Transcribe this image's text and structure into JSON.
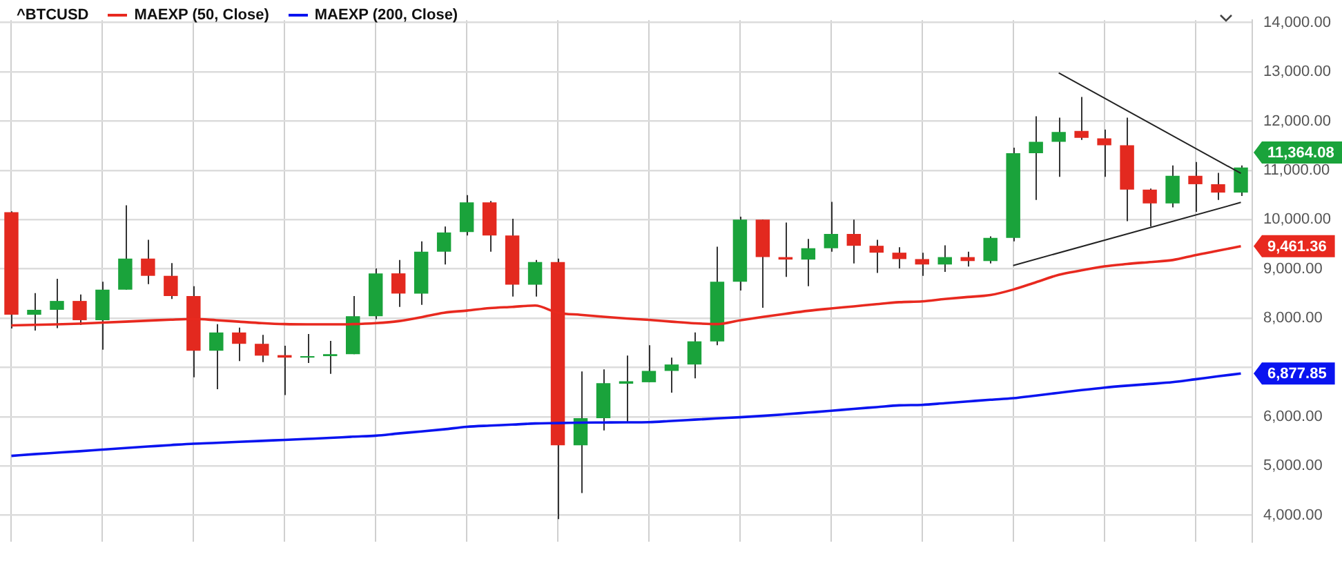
{
  "chart_data": {
    "type": "candlestick",
    "title": "^BTCUSD",
    "legend": "top left",
    "grid": true,
    "categories": [
      null,
      null,
      null,
      null,
      null,
      null,
      null,
      null,
      null,
      null,
      null,
      null,
      null,
      null,
      null,
      null,
      null,
      null,
      null,
      null,
      null,
      null,
      null,
      null,
      null,
      null,
      null,
      null,
      null,
      null,
      null,
      null,
      null,
      null,
      null,
      null,
      null,
      null,
      null,
      null,
      null,
      null,
      null,
      null,
      null,
      null,
      null,
      null,
      null,
      null,
      null,
      null,
      null,
      null,
      null
    ],
    "ylim": [
      3460,
      14050
    ],
    "yticks": [
      {
        "value": 4000,
        "label": "4,000.00"
      },
      {
        "value": 5000,
        "label": "5,000.00"
      },
      {
        "value": 6000,
        "label": "6,000.00"
      },
      {
        "value": 7000,
        "label": null
      },
      {
        "value": 8000,
        "label": "8,000.00"
      },
      {
        "value": 9000,
        "label": "9,000.00"
      },
      {
        "value": 10000,
        "label": "10,000.00"
      },
      {
        "value": 11000,
        "label": "11,000.00"
      },
      {
        "value": 12000,
        "label": "12,000.00"
      },
      {
        "value": 13000,
        "label": "13,000.00"
      },
      {
        "value": 14000,
        "label": "14,000.00"
      }
    ],
    "annotations": [
      "11,364.08"
    ],
    "series": [
      {
        "ohlc": [
          [
            10150,
            10170,
            7790,
            8070
          ],
          [
            8070,
            8510,
            7750,
            8170
          ],
          [
            8170,
            8800,
            7800,
            8350
          ],
          [
            8350,
            8480,
            7860,
            7960
          ],
          [
            7960,
            8740,
            7360,
            8580
          ],
          [
            8580,
            10290,
            8580,
            9210
          ],
          [
            9210,
            9590,
            8690,
            8860
          ],
          [
            8860,
            9120,
            8390,
            8450
          ],
          [
            8450,
            8650,
            6800,
            7340
          ],
          [
            7340,
            7880,
            6560,
            7710
          ],
          [
            7710,
            7810,
            7130,
            7480
          ],
          [
            7480,
            7660,
            7110,
            7240
          ],
          [
            7250,
            7440,
            6440,
            7200
          ],
          [
            7200,
            7680,
            7090,
            7230
          ],
          [
            7230,
            7540,
            6870,
            7270
          ],
          [
            7270,
            8450,
            7270,
            8040
          ],
          [
            8040,
            9010,
            7980,
            8910
          ],
          [
            8910,
            9180,
            8230,
            8500
          ],
          [
            8500,
            9560,
            8270,
            9350
          ],
          [
            9350,
            9860,
            9090,
            9740
          ],
          [
            9750,
            10500,
            9680,
            10350
          ],
          [
            10350,
            10380,
            9350,
            9680
          ],
          [
            9680,
            10020,
            8440,
            8680
          ],
          [
            8680,
            9180,
            8440,
            9140
          ],
          [
            9140,
            9210,
            3920,
            5420
          ],
          [
            5420,
            6920,
            4450,
            5970
          ],
          [
            5970,
            6960,
            5720,
            6680
          ],
          [
            6670,
            7240,
            5890,
            6720
          ],
          [
            6700,
            7450,
            6700,
            6930
          ],
          [
            6930,
            7200,
            6490,
            7060
          ],
          [
            7060,
            7710,
            6780,
            7530
          ],
          [
            7530,
            9450,
            7450,
            8740
          ],
          [
            8740,
            10060,
            8560,
            10000
          ],
          [
            10000,
            10000,
            8210,
            9240
          ],
          [
            9240,
            9940,
            8840,
            9190
          ],
          [
            9190,
            9610,
            8650,
            9420
          ],
          [
            9420,
            10360,
            9350,
            9710
          ],
          [
            9710,
            10000,
            9110,
            9470
          ],
          [
            9470,
            9590,
            8920,
            9330
          ],
          [
            9330,
            9440,
            9010,
            9200
          ],
          [
            9200,
            9330,
            8860,
            9090
          ],
          [
            9090,
            9480,
            8940,
            9240
          ],
          [
            9240,
            9350,
            9050,
            9160
          ],
          [
            9160,
            9660,
            9110,
            9630
          ],
          [
            9630,
            11460,
            9560,
            11350
          ],
          [
            11350,
            12100,
            10400,
            11580
          ],
          [
            11580,
            12070,
            10870,
            11780
          ],
          [
            11800,
            12490,
            11620,
            11660
          ],
          [
            11650,
            11830,
            10870,
            11510
          ],
          [
            11510,
            12070,
            9970,
            10610
          ],
          [
            10610,
            10630,
            9860,
            10330
          ],
          [
            10330,
            11100,
            10250,
            10890
          ],
          [
            10890,
            11170,
            10160,
            10720
          ],
          [
            10720,
            10950,
            10400,
            10550
          ],
          [
            10550,
            11100,
            10480,
            11060
          ]
        ],
        "colors": [
          "#e3291f",
          "#1aa33b",
          "#1aa33b",
          "#e3291f",
          "#1aa33b",
          "#1aa33b",
          "#e3291f",
          "#e3291f",
          "#e3291f",
          "#1aa33b",
          "#e3291f",
          "#e3291f",
          "#e3291f",
          "#1aa33b",
          "#1aa33b",
          "#1aa33b",
          "#1aa33b",
          "#e3291f",
          "#1aa33b",
          "#1aa33b",
          "#1aa33b",
          "#e3291f",
          "#e3291f",
          "#1aa33b",
          "#e3291f",
          "#1aa33b",
          "#1aa33b",
          "#1aa33b",
          "#1aa33b",
          "#1aa33b",
          "#1aa33b",
          "#1aa33b",
          "#1aa33b",
          "#e3291f",
          "#e3291f",
          "#1aa33b",
          "#1aa33b",
          "#e3291f",
          "#e3291f",
          "#e3291f",
          "#e3291f",
          "#1aa33b",
          "#e3291f",
          "#1aa33b",
          "#1aa33b",
          "#1aa33b",
          "#1aa33b",
          "#e3291f",
          "#e3291f",
          "#e3291f",
          "#e3291f",
          "#1aa33b",
          "#e3291f",
          "#e3291f",
          "#1aa33b"
        ]
      },
      {
        "type": "line",
        "name": "MAEXP (50, Close)",
        "color": "#e8291f",
        "values": [
          7855,
          7865,
          7875,
          7890,
          7910,
          7930,
          7950,
          7970,
          7983,
          7960,
          7930,
          7900,
          7880,
          7875,
          7875,
          7880,
          7900,
          7940,
          8020,
          8111,
          8154,
          8205,
          8230,
          8256,
          8111,
          8068,
          8030,
          7995,
          7966,
          7930,
          7897,
          7880,
          7957,
          8026,
          8090,
          8150,
          8197,
          8240,
          8285,
          8325,
          8342,
          8390,
          8430,
          8470,
          8581,
          8730,
          8880,
          8970,
          9051,
          9100,
          9140,
          9180,
          9280,
          9370,
          9461.36
        ],
        "value_labels": [
          null,
          null,
          null,
          null,
          null,
          null,
          null,
          null,
          null,
          null,
          null,
          null,
          null,
          null,
          null,
          null,
          null,
          null,
          null,
          null,
          null,
          null,
          null,
          null,
          null,
          null,
          null,
          null,
          null,
          null,
          null,
          null,
          null,
          null,
          null,
          null,
          null,
          null,
          null,
          null,
          null,
          null,
          null,
          null,
          null,
          null,
          null,
          null,
          null,
          null,
          null,
          null,
          null,
          null,
          "9,461.36"
        ]
      },
      {
        "type": "line",
        "name": "MAEXP (200, Close)",
        "color": "#0a14f0",
        "values": [
          5205,
          5240,
          5270,
          5300,
          5333,
          5365,
          5395,
          5425,
          5453,
          5470,
          5490,
          5510,
          5530,
          5550,
          5570,
          5595,
          5615,
          5660,
          5700,
          5744,
          5795,
          5820,
          5840,
          5863,
          5870,
          5880,
          5883,
          5886,
          5889,
          5915,
          5940,
          5966,
          5990,
          6017,
          6050,
          6085,
          6120,
          6160,
          6195,
          6231,
          6240,
          6275,
          6310,
          6345,
          6376,
          6430,
          6485,
          6540,
          6590,
          6630,
          6665,
          6701,
          6760,
          6820,
          6877.85
        ],
        "value_labels": [
          null,
          null,
          null,
          null,
          null,
          null,
          null,
          null,
          null,
          null,
          null,
          null,
          null,
          null,
          null,
          null,
          null,
          null,
          null,
          null,
          null,
          null,
          null,
          null,
          null,
          null,
          null,
          null,
          null,
          null,
          null,
          null,
          null,
          null,
          null,
          null,
          null,
          null,
          null,
          null,
          null,
          null,
          null,
          null,
          null,
          null,
          null,
          null,
          null,
          null,
          null,
          null,
          null,
          null,
          "6,877.85"
        ]
      },
      {
        "type": "line",
        "color": "#222222",
        "values": [
          null,
          null,
          null,
          null,
          null,
          null,
          null,
          null,
          null,
          null,
          null,
          null,
          null,
          null,
          null,
          null,
          null,
          null,
          null,
          null,
          null,
          null,
          null,
          null,
          null,
          null,
          null,
          null,
          null,
          null,
          null,
          null,
          null,
          null,
          null,
          null,
          null,
          null,
          null,
          null,
          null,
          null,
          null,
          null,
          null,
          null,
          12980,
          null,
          null,
          null,
          null,
          null,
          null,
          null,
          10940
        ]
      },
      {
        "type": "line",
        "color": "#222222",
        "values": [
          null,
          null,
          null,
          null,
          null,
          null,
          null,
          null,
          null,
          null,
          null,
          null,
          null,
          null,
          null,
          null,
          null,
          null,
          null,
          null,
          null,
          null,
          null,
          null,
          null,
          null,
          null,
          null,
          null,
          null,
          null,
          null,
          null,
          null,
          null,
          null,
          null,
          null,
          null,
          null,
          null,
          null,
          null,
          null,
          9070,
          null,
          null,
          null,
          null,
          null,
          null,
          null,
          null,
          null,
          10350
        ]
      }
    ]
  }
}
